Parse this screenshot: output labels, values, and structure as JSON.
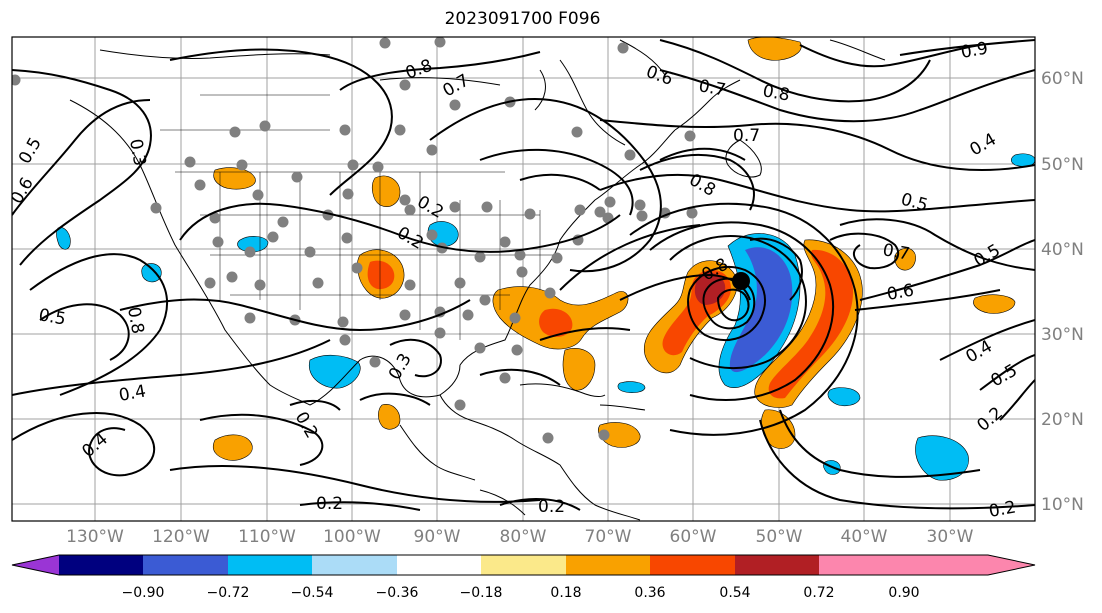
{
  "title": "2023091700 F096",
  "map": {
    "lon_labels": [
      "130°W",
      "120°W",
      "110°W",
      "100°W",
      "90°W",
      "80°W",
      "70°W",
      "60°W",
      "50°W",
      "40°W",
      "30°W"
    ],
    "lat_labels": [
      "60°N",
      "50°N",
      "40°N",
      "30°N",
      "20°N",
      "10°N"
    ],
    "contour_labels": [
      "0.8",
      "0.7",
      "0.6",
      "0.7",
      "0.8",
      "0.9",
      "0.5",
      "0.3",
      "0.6",
      "0.5",
      "0.8",
      "0.2",
      "0.2",
      "0.8",
      "0.8",
      "0.7",
      "0.4",
      "0.5",
      "0.5",
      "0.7",
      "0.6",
      "0.4",
      "0.5",
      "0.3",
      "0.4",
      "0.4",
      "0.2",
      "0.2",
      "0.2",
      "0.2",
      "0.2"
    ],
    "storm_marker": "storm-center"
  },
  "colorbar": {
    "ticks": [
      "−0.90",
      "−0.72",
      "−0.54",
      "−0.36",
      "−0.18",
      "0.18",
      "0.36",
      "0.54",
      "0.72",
      "0.90"
    ],
    "colors": [
      "#9a35d5",
      "#00007f",
      "#3b5bd4",
      "#00bdf4",
      "#abdcf7",
      "#ffffff",
      "#fbe98a",
      "#f9a100",
      "#f84700",
      "#b11f24",
      "#fc86ad",
      "#fc86ad"
    ]
  },
  "colors": {
    "neg_strong": "#3b5bd4",
    "neg_mid": "#00bdf4",
    "neg_weak": "#abdcf7",
    "pos_weak": "#fbe98a",
    "pos_mid": "#f9a100",
    "pos_strong": "#f84700",
    "pos_extreme": "#b11f24",
    "station": "#808080"
  }
}
